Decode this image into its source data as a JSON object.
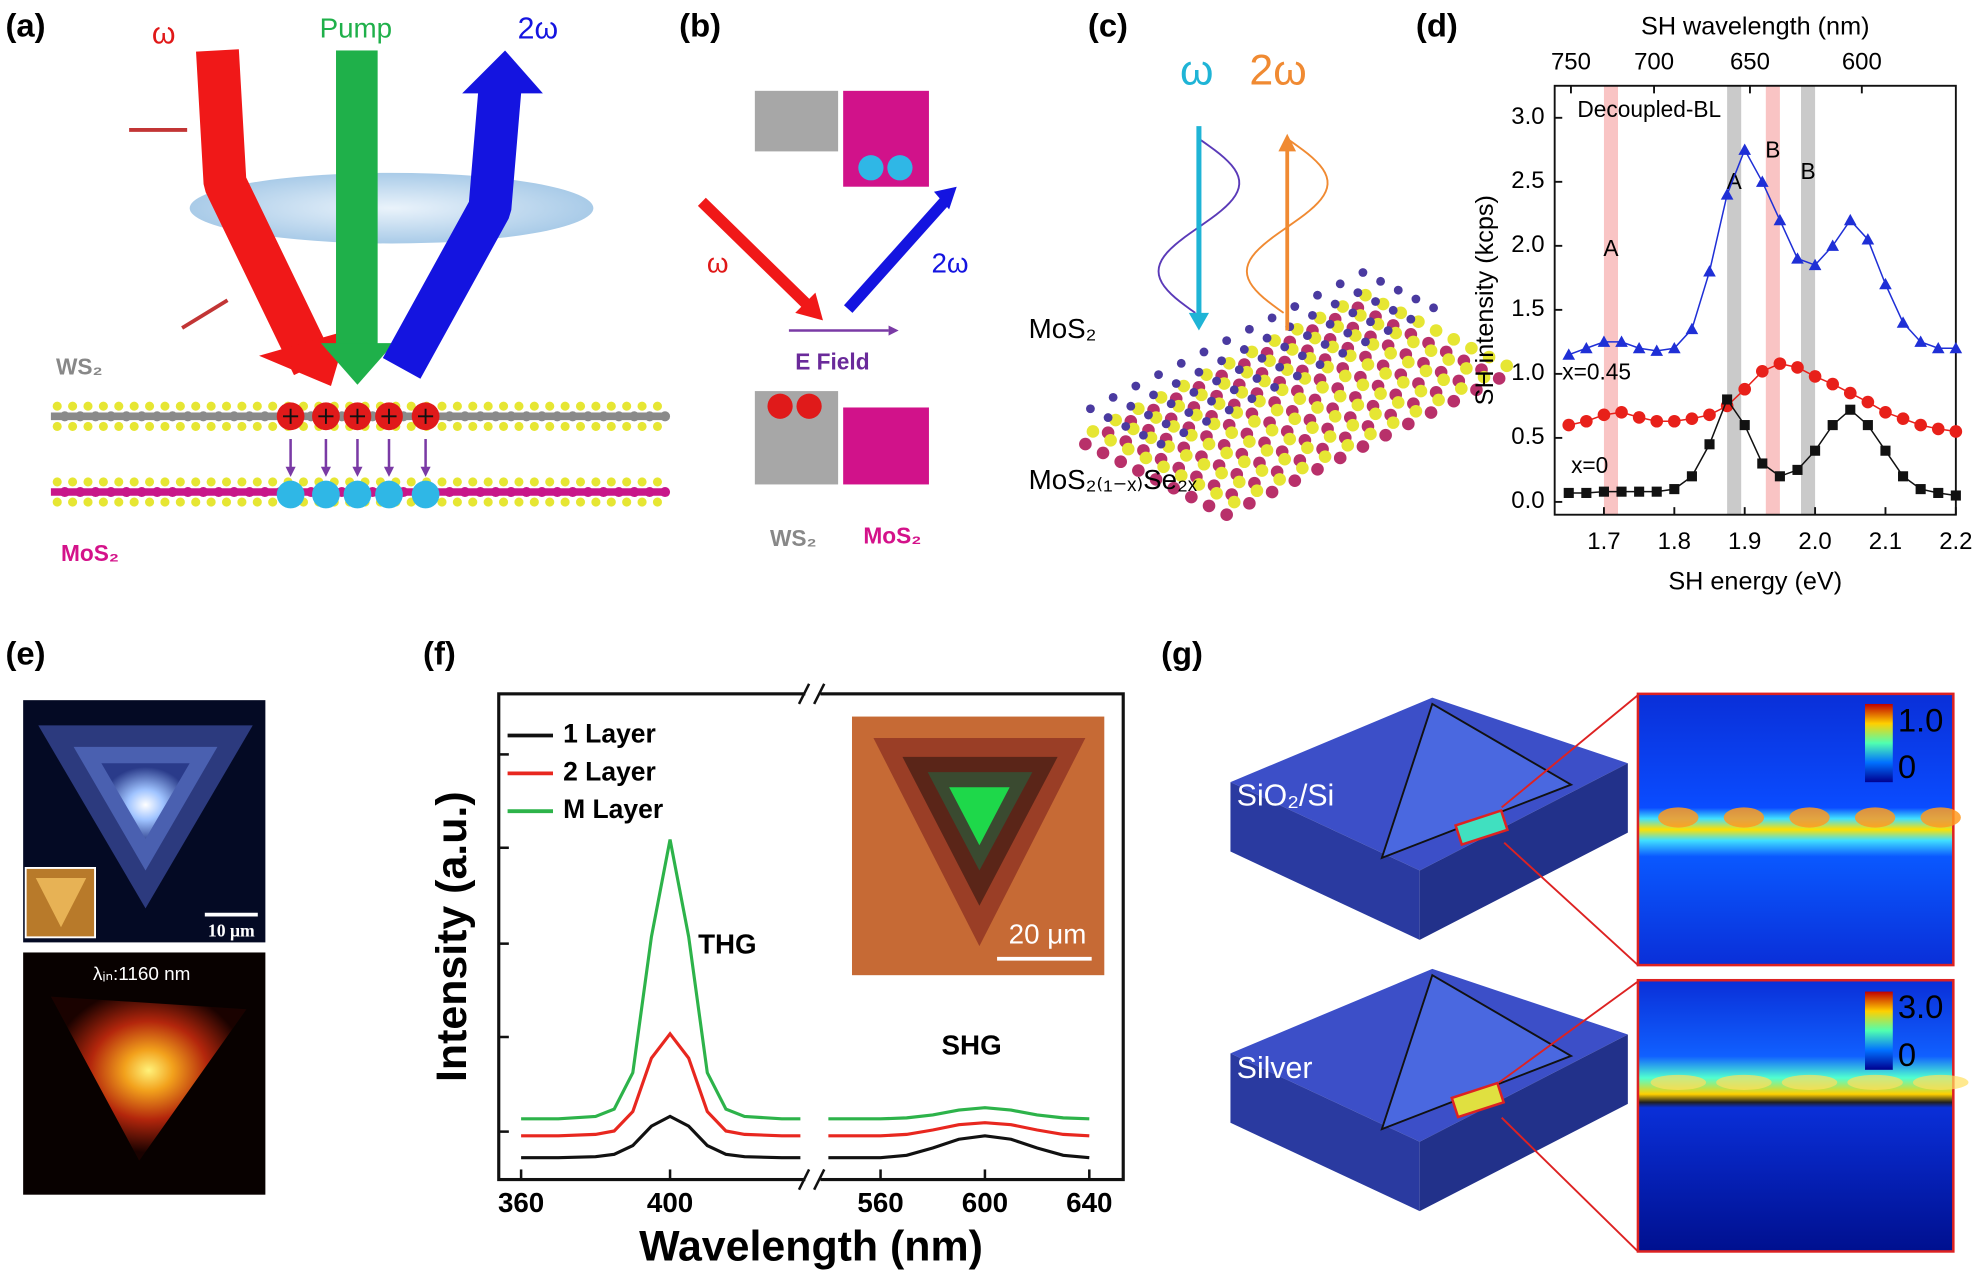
{
  "panels": {
    "a": {
      "label": "(a)",
      "omega": "ω",
      "pump": "Pump",
      "two_omega": "2ω",
      "ws2": "WS₂",
      "mos2": "MoS₂"
    },
    "b": {
      "label": "(b)",
      "omega": "ω",
      "two_omega": "2ω",
      "field": "E Field",
      "ws2": "WS₂",
      "mos2": "MoS₂"
    },
    "c": {
      "label": "(c)",
      "omega": "ω",
      "two_omega": "2ω",
      "top_layer": "MoS₂",
      "bottom_layer": "MoS₂₍₁₋ₓ₎Se₂ₓ"
    },
    "d": {
      "label": "(d)"
    },
    "e": {
      "label": "(e)",
      "scale_bar": "10 μm",
      "excitation": "λᵢₙ:1160 nm"
    },
    "f": {
      "label": "(f)",
      "inset_scale_bar": "20 μm",
      "peak_labels": [
        "THG",
        "SHG"
      ]
    },
    "g": {
      "label": "(g)",
      "substrates": [
        "SiO₂/Si",
        "Silver"
      ],
      "colorbars": [
        {
          "max": "1.0",
          "min": "0"
        },
        {
          "max": "3.0",
          "min": "0"
        }
      ]
    }
  },
  "chart_data": [
    {
      "type": "line",
      "x_label": "SH energy (eV)",
      "y_label": "SH intensity (kcps)",
      "x2_label": "SH wavelength (nm)",
      "x": [
        1.65,
        1.675,
        1.7,
        1.725,
        1.75,
        1.775,
        1.8,
        1.825,
        1.85,
        1.875,
        1.9,
        1.925,
        1.95,
        1.975,
        2.0,
        2.025,
        2.05,
        2.075,
        2.1,
        2.125,
        2.15,
        2.175,
        2.2
      ],
      "series": [
        {
          "name": "Decoupled-BL",
          "color": "#1f2fd6",
          "marker": "triangle",
          "values": [
            1.15,
            1.2,
            1.25,
            1.25,
            1.2,
            1.18,
            1.2,
            1.35,
            1.8,
            2.4,
            2.75,
            2.5,
            2.2,
            1.9,
            1.85,
            2.0,
            2.2,
            2.05,
            1.7,
            1.4,
            1.25,
            1.2,
            1.2
          ]
        },
        {
          "name": "x=0.45",
          "color": "#e8201a",
          "marker": "circle",
          "values": [
            0.6,
            0.63,
            0.68,
            0.7,
            0.66,
            0.63,
            0.63,
            0.65,
            0.68,
            0.75,
            0.88,
            1.02,
            1.08,
            1.05,
            0.98,
            0.92,
            0.85,
            0.78,
            0.7,
            0.65,
            0.6,
            0.57,
            0.55
          ]
        },
        {
          "name": "x=0",
          "color": "#111111",
          "marker": "square",
          "values": [
            0.07,
            0.07,
            0.08,
            0.08,
            0.08,
            0.08,
            0.1,
            0.2,
            0.45,
            0.8,
            0.6,
            0.3,
            0.2,
            0.25,
            0.4,
            0.6,
            0.72,
            0.6,
            0.4,
            0.2,
            0.1,
            0.07,
            0.05
          ]
        }
      ],
      "xlim": [
        1.63,
        2.2
      ],
      "ylim": [
        -0.1,
        3.25
      ],
      "xticks": [
        1.7,
        1.8,
        1.9,
        {
          "value": 2.0,
          "label": "2.0"
        },
        2.1,
        2.2
      ],
      "yticks": [
        {
          "value": 0,
          "label": "0.0"
        },
        0.5,
        {
          "value": 1,
          "label": "1.0"
        },
        1.5,
        {
          "value": 2,
          "label": "2.0"
        },
        2.5,
        {
          "value": 3,
          "label": "3.0"
        }
      ],
      "x2ticks": [
        750,
        700,
        650,
        600
      ],
      "bands": [
        {
          "from": 1.7,
          "to": 1.72,
          "color": "#f7b5b5",
          "label": "A"
        },
        {
          "from": 1.875,
          "to": 1.895,
          "color": "#bdbdbd",
          "label": "A"
        },
        {
          "from": 1.93,
          "to": 1.95,
          "color": "#f7b5b5",
          "label": "B"
        },
        {
          "from": 1.98,
          "to": 2.0,
          "color": "#bdbdbd",
          "label": "B"
        }
      ]
    },
    {
      "type": "line",
      "x_label": "Wavelength (nm)",
      "y_label": "Intensity (a.u.)",
      "x": [
        360,
        370,
        380,
        385,
        390,
        395,
        400,
        405,
        410,
        415,
        420,
        430,
        435,
        540,
        560,
        570,
        580,
        590,
        600,
        610,
        620,
        630,
        640
      ],
      "series": [
        {
          "name": "1 Layer",
          "color": "#111111",
          "values": [
            0.045,
            0.045,
            0.047,
            0.052,
            0.07,
            0.11,
            0.13,
            0.11,
            0.07,
            0.052,
            0.047,
            0.045,
            0.045,
            0.045,
            0.045,
            0.05,
            0.065,
            0.083,
            0.09,
            0.083,
            0.065,
            0.05,
            0.045
          ]
        },
        {
          "name": "2 Layer",
          "color": "#e8271f",
          "values": [
            0.09,
            0.09,
            0.093,
            0.1,
            0.14,
            0.25,
            0.3,
            0.25,
            0.14,
            0.1,
            0.093,
            0.09,
            0.09,
            0.09,
            0.09,
            0.093,
            0.102,
            0.113,
            0.117,
            0.113,
            0.102,
            0.093,
            0.09
          ]
        },
        {
          "name": "M Layer",
          "color": "#2db34a",
          "values": [
            0.125,
            0.125,
            0.13,
            0.145,
            0.22,
            0.5,
            0.7,
            0.5,
            0.22,
            0.145,
            0.13,
            0.125,
            0.125,
            0.125,
            0.125,
            0.127,
            0.133,
            0.143,
            0.148,
            0.143,
            0.133,
            0.127,
            0.125
          ]
        }
      ],
      "xlim_segments": [
        [
          354,
          437
        ],
        [
          536,
          653
        ]
      ],
      "ylim": [
        0,
        1
      ],
      "xticks": [
        360,
        400,
        560,
        600,
        640
      ]
    }
  ]
}
